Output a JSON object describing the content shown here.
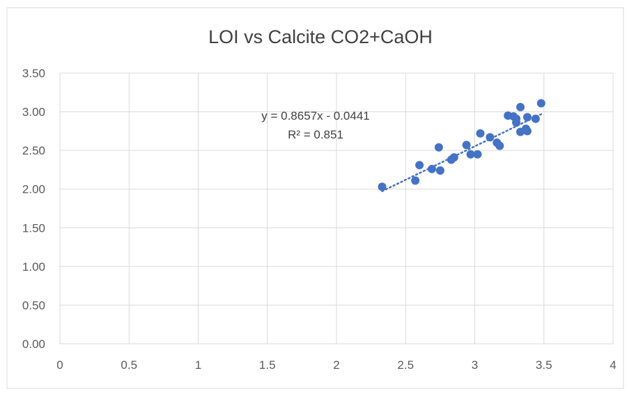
{
  "chart_data": {
    "type": "scatter",
    "title": "LOI vs  Calcite CO2+CaOH",
    "xlabel": "",
    "ylabel": "",
    "xlim": [
      0,
      4
    ],
    "ylim": [
      0,
      3.5
    ],
    "x_ticks": [
      0,
      0.5,
      1,
      1.5,
      2,
      2.5,
      3,
      3.5,
      4
    ],
    "x_tick_labels": [
      "0",
      "0.5",
      "1",
      "1.5",
      "2",
      "2.5",
      "3",
      "3.5",
      "4"
    ],
    "y_ticks": [
      0,
      0.5,
      1,
      1.5,
      2,
      2.5,
      3,
      3.5
    ],
    "y_tick_labels": [
      "0.00",
      "0.50",
      "1.00",
      "1.50",
      "2.00",
      "2.50",
      "3.00",
      "3.50"
    ],
    "grid": true,
    "marker_color": "#4472C4",
    "trendline_color": "#4472C4",
    "points": [
      {
        "x": 2.33,
        "y": 2.03
      },
      {
        "x": 2.57,
        "y": 2.11
      },
      {
        "x": 2.6,
        "y": 2.31
      },
      {
        "x": 2.69,
        "y": 2.26
      },
      {
        "x": 2.74,
        "y": 2.54
      },
      {
        "x": 2.75,
        "y": 2.24
      },
      {
        "x": 2.83,
        "y": 2.38
      },
      {
        "x": 2.85,
        "y": 2.41
      },
      {
        "x": 2.94,
        "y": 2.57
      },
      {
        "x": 2.97,
        "y": 2.45
      },
      {
        "x": 3.02,
        "y": 2.45
      },
      {
        "x": 3.04,
        "y": 2.72
      },
      {
        "x": 3.11,
        "y": 2.67
      },
      {
        "x": 3.16,
        "y": 2.6
      },
      {
        "x": 3.18,
        "y": 2.56
      },
      {
        "x": 3.24,
        "y": 2.95
      },
      {
        "x": 3.28,
        "y": 2.94
      },
      {
        "x": 3.3,
        "y": 2.86
      },
      {
        "x": 3.3,
        "y": 2.91
      },
      {
        "x": 3.33,
        "y": 3.06
      },
      {
        "x": 3.33,
        "y": 2.74
      },
      {
        "x": 3.37,
        "y": 2.78
      },
      {
        "x": 3.38,
        "y": 2.75
      },
      {
        "x": 3.38,
        "y": 2.93
      },
      {
        "x": 3.44,
        "y": 2.91
      },
      {
        "x": 3.48,
        "y": 3.11
      }
    ],
    "trendline": {
      "type": "linear",
      "slope": 0.8657,
      "intercept": -0.0441,
      "x_range": [
        2.33,
        3.48
      ],
      "equation_label": "y = 0.8657x - 0.0441",
      "r2_label": "R² = 0.851"
    }
  }
}
